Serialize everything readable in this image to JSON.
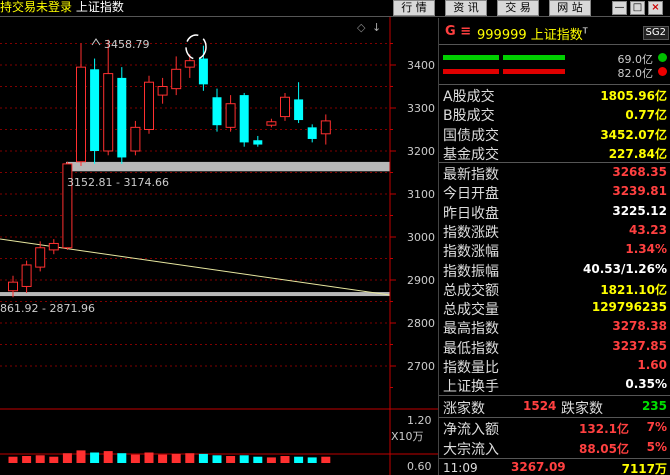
{
  "window": {
    "title_status": "持交易未登录",
    "title_name": "上证指数",
    "buttons": [
      "行 情",
      "资 讯",
      "交 易",
      "网 站"
    ],
    "ctrl_min": "—",
    "ctrl_max": "□",
    "ctrl_close": "×"
  },
  "chart": {
    "diamond_icon": "◇",
    "down_arrow": "↓",
    "high_label": "3458.79",
    "box_label_top": "3152.81 - 3174.66",
    "box_label_bottom": "861.92 - 2871.96",
    "volume_label": "X10万",
    "y_ticks": [
      "3400",
      "3300",
      "3200",
      "3100",
      "3000",
      "2900",
      "2800",
      "2700"
    ],
    "bottom_ticks": [
      "1.20",
      "0.60"
    ],
    "colors": {
      "up": "#ff3030",
      "down": "#00ffff",
      "grid": "#800000",
      "axis": "#c00000"
    }
  },
  "chart_data": {
    "type": "candlestick",
    "title": "",
    "ylim": [
      2650,
      3480
    ],
    "candles": [
      {
        "o": 2875,
        "h": 2910,
        "l": 2860,
        "c": 2895
      },
      {
        "o": 2885,
        "h": 2945,
        "l": 2870,
        "c": 2935
      },
      {
        "o": 2930,
        "h": 2990,
        "l": 2920,
        "c": 2975
      },
      {
        "o": 2970,
        "h": 2995,
        "l": 2960,
        "c": 2985
      },
      {
        "o": 2975,
        "h": 3175,
        "l": 2970,
        "c": 3170
      },
      {
        "o": 3175,
        "h": 3450,
        "l": 3165,
        "c": 3395
      },
      {
        "o": 3390,
        "h": 3415,
        "l": 3170,
        "c": 3200
      },
      {
        "o": 3200,
        "h": 3459,
        "l": 3190,
        "c": 3380
      },
      {
        "o": 3370,
        "h": 3395,
        "l": 3170,
        "c": 3185
      },
      {
        "o": 3200,
        "h": 3270,
        "l": 3190,
        "c": 3255
      },
      {
        "o": 3250,
        "h": 3375,
        "l": 3240,
        "c": 3360
      },
      {
        "o": 3330,
        "h": 3370,
        "l": 3310,
        "c": 3350
      },
      {
        "o": 3345,
        "h": 3420,
        "l": 3330,
        "c": 3390
      },
      {
        "o": 3395,
        "h": 3425,
        "l": 3370,
        "c": 3410
      },
      {
        "o": 3415,
        "h": 3445,
        "l": 3340,
        "c": 3355
      },
      {
        "o": 3325,
        "h": 3345,
        "l": 3245,
        "c": 3260
      },
      {
        "o": 3255,
        "h": 3330,
        "l": 3245,
        "c": 3310
      },
      {
        "o": 3330,
        "h": 3335,
        "l": 3210,
        "c": 3220
      },
      {
        "o": 3225,
        "h": 3235,
        "l": 3210,
        "c": 3215
      },
      {
        "o": 3260,
        "h": 3275,
        "l": 3255,
        "c": 3268
      },
      {
        "o": 3280,
        "h": 3335,
        "l": 3270,
        "c": 3325
      },
      {
        "o": 3320,
        "h": 3360,
        "l": 3265,
        "c": 3272
      },
      {
        "o": 3255,
        "h": 3262,
        "l": 3220,
        "c": 3228
      },
      {
        "o": 3240,
        "h": 3285,
        "l": 3215,
        "c": 3270
      }
    ],
    "volume_ratio": [
      0.45,
      0.5,
      0.55,
      0.45,
      0.7,
      0.9,
      0.75,
      0.85,
      0.7,
      0.6,
      0.75,
      0.6,
      0.65,
      0.7,
      0.65,
      0.55,
      0.5,
      0.55,
      0.45,
      0.4,
      0.5,
      0.45,
      0.4,
      0.45
    ]
  },
  "panel": {
    "code": "999999",
    "name": "上证指数",
    "prefix": "G ≡",
    "badge": "SG2",
    "bar1_value": "69.0亿",
    "bar2_value": "82.0亿",
    "stats_a": [
      {
        "label": "A股成交",
        "value": "1805.96亿",
        "color": "y"
      },
      {
        "label": "B股成交",
        "value": "0.77亿",
        "color": "y"
      },
      {
        "label": "国债成交",
        "value": "3452.07亿",
        "color": "y"
      },
      {
        "label": "基金成交",
        "value": "227.84亿",
        "color": "y"
      }
    ],
    "stats_b": [
      {
        "label": "最新指数",
        "value": "3268.35",
        "color": "r"
      },
      {
        "label": "今日开盘",
        "value": "3239.81",
        "color": "r"
      },
      {
        "label": "昨日收盘",
        "value": "3225.12",
        "color": "w"
      },
      {
        "label": "指数涨跌",
        "value": "43.23",
        "color": "r"
      },
      {
        "label": "指数涨幅",
        "value": "1.34%",
        "color": "r"
      },
      {
        "label": "指数振幅",
        "value": "40.53/1.26%",
        "color": "w"
      },
      {
        "label": "总成交额",
        "value": "1821.10亿",
        "color": "y"
      },
      {
        "label": "总成交量",
        "value": "129796235",
        "color": "y"
      },
      {
        "label": "最高指数",
        "value": "3278.38",
        "color": "r"
      },
      {
        "label": "最低指数",
        "value": "3237.85",
        "color": "r"
      },
      {
        "label": "指数量比",
        "value": "1.60",
        "color": "r"
      },
      {
        "label": "上证换手",
        "value": "0.35%",
        "color": "w"
      }
    ],
    "rise_label": "涨家数",
    "rise_value": "1524",
    "fall_label": "跌家数",
    "fall_value": "235",
    "flows": [
      {
        "label": "净流入额",
        "value": "132.1亿",
        "pct": "7%"
      },
      {
        "label": "大宗流入",
        "value": "88.05亿",
        "pct": "5%"
      }
    ],
    "footer_time": "11:09",
    "footer_price": "3267.09",
    "footer_vol": "7117万"
  }
}
